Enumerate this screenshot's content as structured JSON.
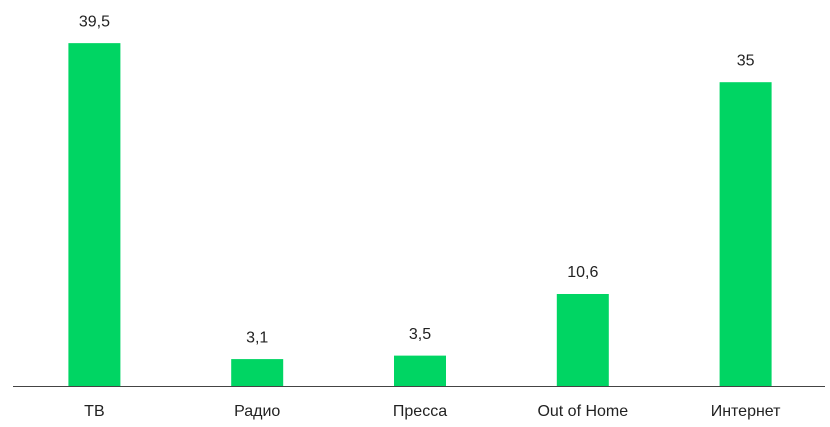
{
  "chart_data": {
    "type": "bar",
    "categories": [
      "ТВ",
      "Радио",
      "Пресса",
      "Out of Home",
      "Интернет"
    ],
    "values": [
      39.5,
      3.1,
      3.5,
      10.6,
      35
    ],
    "value_labels": [
      "39,5",
      "3,1",
      "3,5",
      "10,6",
      "35"
    ],
    "color": "#00d563"
  }
}
